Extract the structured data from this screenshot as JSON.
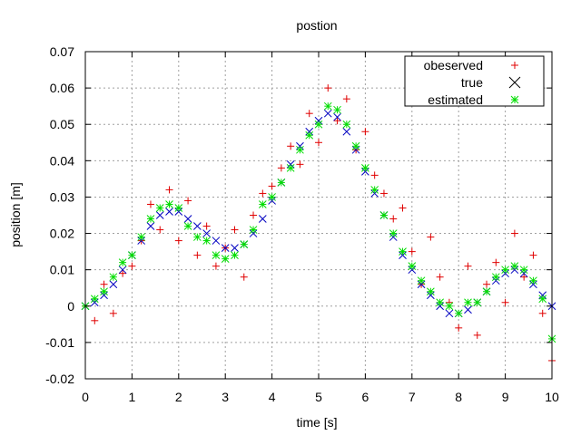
{
  "chart_data": {
    "type": "scatter",
    "title": "postion",
    "xlabel": "time [s]",
    "ylabel": "position [m]",
    "xlim": [
      0,
      10
    ],
    "ylim": [
      -0.02,
      0.07
    ],
    "xticks": [
      0,
      1,
      2,
      3,
      4,
      5,
      6,
      7,
      8,
      9,
      10
    ],
    "yticks": [
      -0.02,
      -0.01,
      0,
      0.01,
      0.02,
      0.03,
      0.04,
      0.05,
      0.06,
      0.07
    ],
    "yticklabels": [
      "-0.02",
      "-0.01",
      "0",
      "0.01",
      "0.02",
      "0.03",
      "0.04",
      "0.05",
      "0.06",
      "0.07"
    ],
    "grid": true,
    "legend_position": "top-right",
    "series": [
      {
        "name": "obeserved",
        "marker": "plus",
        "color": "#e00000",
        "x": [
          0.0,
          0.2,
          0.4,
          0.6,
          0.8,
          1.0,
          1.2,
          1.4,
          1.6,
          1.8,
          2.0,
          2.2,
          2.4,
          2.6,
          2.8,
          3.0,
          3.2,
          3.4,
          3.6,
          3.8,
          4.0,
          4.2,
          4.4,
          4.6,
          4.8,
          5.0,
          5.2,
          5.4,
          5.6,
          5.8,
          6.0,
          6.2,
          6.4,
          6.6,
          6.8,
          7.0,
          7.2,
          7.4,
          7.6,
          7.8,
          8.0,
          8.2,
          8.4,
          8.6,
          8.8,
          9.0,
          9.2,
          9.4,
          9.6,
          9.8,
          10.0
        ],
        "y": [
          0.0,
          -0.004,
          0.006,
          -0.002,
          0.009,
          0.011,
          0.018,
          0.028,
          0.021,
          0.032,
          0.018,
          0.029,
          0.014,
          0.022,
          0.011,
          0.016,
          0.021,
          0.008,
          0.025,
          0.031,
          0.033,
          0.038,
          0.044,
          0.039,
          0.053,
          0.045,
          0.06,
          0.051,
          0.057,
          0.043,
          0.048,
          0.036,
          0.031,
          0.024,
          0.027,
          0.015,
          0.006,
          0.019,
          0.008,
          0.001,
          -0.006,
          0.011,
          -0.008,
          0.006,
          0.012,
          0.001,
          0.02,
          0.008,
          0.014,
          -0.002,
          -0.015
        ]
      },
      {
        "name": "true",
        "marker": "cross",
        "color": "#0000c0",
        "x": [
          0.0,
          0.2,
          0.4,
          0.6,
          0.8,
          1.0,
          1.2,
          1.4,
          1.6,
          1.8,
          2.0,
          2.2,
          2.4,
          2.6,
          2.8,
          3.0,
          3.2,
          3.4,
          3.6,
          3.8,
          4.0,
          4.2,
          4.4,
          4.6,
          4.8,
          5.0,
          5.2,
          5.4,
          5.6,
          5.8,
          6.0,
          6.2,
          6.4,
          6.6,
          6.8,
          7.0,
          7.2,
          7.4,
          7.6,
          7.8,
          8.0,
          8.2,
          8.4,
          8.6,
          8.8,
          9.0,
          9.2,
          9.4,
          9.6,
          9.8,
          10.0
        ],
        "y": [
          0.0,
          0.001,
          0.003,
          0.006,
          0.01,
          0.014,
          0.018,
          0.022,
          0.025,
          0.026,
          0.026,
          0.024,
          0.022,
          0.02,
          0.018,
          0.016,
          0.016,
          0.017,
          0.02,
          0.024,
          0.029,
          0.034,
          0.039,
          0.044,
          0.048,
          0.051,
          0.053,
          0.052,
          0.048,
          0.043,
          0.037,
          0.031,
          0.025,
          0.019,
          0.014,
          0.01,
          0.006,
          0.003,
          0.0,
          -0.002,
          -0.002,
          -0.001,
          0.001,
          0.004,
          0.007,
          0.009,
          0.01,
          0.009,
          0.006,
          0.003,
          0.0
        ]
      },
      {
        "name": "estimated",
        "marker": "star",
        "color": "#00dd00",
        "x": [
          0.0,
          0.2,
          0.4,
          0.6,
          0.8,
          1.0,
          1.2,
          1.4,
          1.6,
          1.8,
          2.0,
          2.2,
          2.4,
          2.6,
          2.8,
          3.0,
          3.2,
          3.4,
          3.6,
          3.8,
          4.0,
          4.2,
          4.4,
          4.6,
          4.8,
          5.0,
          5.2,
          5.4,
          5.6,
          5.8,
          6.0,
          6.2,
          6.4,
          6.6,
          6.8,
          7.0,
          7.2,
          7.4,
          7.6,
          7.8,
          8.0,
          8.2,
          8.4,
          8.6,
          8.8,
          9.0,
          9.2,
          9.4,
          9.6,
          9.8,
          10.0
        ],
        "y": [
          0.0,
          0.002,
          0.004,
          0.008,
          0.012,
          0.014,
          0.019,
          0.024,
          0.027,
          0.028,
          0.027,
          0.022,
          0.019,
          0.018,
          0.014,
          0.013,
          0.014,
          0.017,
          0.021,
          0.028,
          0.03,
          0.034,
          0.038,
          0.043,
          0.047,
          0.05,
          0.055,
          0.054,
          0.05,
          0.044,
          0.038,
          0.032,
          0.025,
          0.02,
          0.015,
          0.011,
          0.007,
          0.004,
          0.001,
          0.0,
          -0.002,
          0.001,
          0.001,
          0.004,
          0.008,
          0.01,
          0.011,
          0.01,
          0.007,
          0.002,
          -0.009
        ]
      }
    ]
  }
}
